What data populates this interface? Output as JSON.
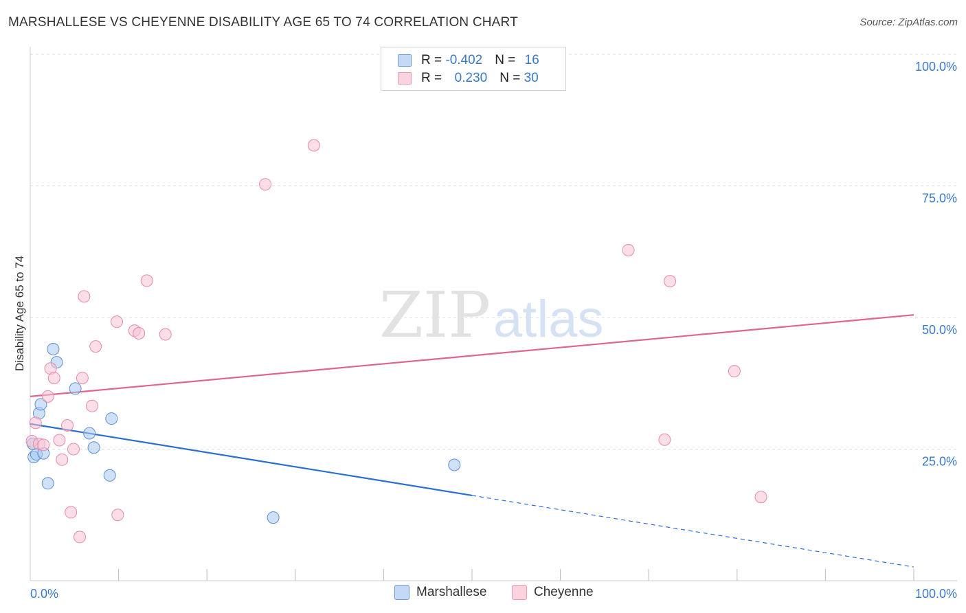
{
  "header": {
    "title": "MARSHALLESE VS CHEYENNE DISABILITY AGE 65 TO 74 CORRELATION CHART",
    "source": "Source: ZipAtlas.com"
  },
  "watermark": {
    "zip": "ZIP",
    "atlas": "atlas"
  },
  "legend": {
    "rows": [
      {
        "r_label": "R = ",
        "r_value": "-0.402",
        "n_label": "N = ",
        "n_value": "16",
        "color": "#a8c8f0",
        "border": "#5d8fd6"
      },
      {
        "r_label": "R = ",
        "r_value": " 0.230",
        "n_label": "N = ",
        "n_value": "30",
        "color": "#f8c3d3",
        "border": "#e88aa6"
      }
    ]
  },
  "bottom_legend": [
    "Marshallese",
    "Cheyenne"
  ],
  "chart_data": {
    "type": "scatter",
    "title": "MARSHALLESE VS CHEYENNE DISABILITY AGE 65 TO 74 CORRELATION CHART",
    "xlabel": "",
    "ylabel": "Disability Age 65 to 74",
    "xlim": [
      0,
      100
    ],
    "ylim": [
      0,
      100
    ],
    "x_tick_labels": [
      "0.0%",
      "100.0%"
    ],
    "y_tick_labels": [
      {
        "value": 100,
        "label": "100.0%"
      },
      {
        "value": 75,
        "label": "75.0%"
      },
      {
        "value": 50,
        "label": "50.0%"
      },
      {
        "value": 25,
        "label": "25.0%"
      }
    ],
    "series": [
      {
        "name": "Marshallese",
        "color": "#a8c8f0",
        "stroke": "#5d8fd6",
        "points": [
          [
            0.3,
            26.0
          ],
          [
            0.4,
            23.5
          ],
          [
            0.7,
            24.0
          ],
          [
            1.0,
            31.8
          ],
          [
            1.2,
            33.5
          ],
          [
            1.5,
            24.2
          ],
          [
            2.0,
            18.5
          ],
          [
            2.6,
            44.0
          ],
          [
            3.0,
            41.5
          ],
          [
            5.1,
            36.5
          ],
          [
            6.7,
            28.0
          ],
          [
            7.2,
            25.3
          ],
          [
            9.0,
            20.0
          ],
          [
            9.2,
            30.8
          ],
          [
            27.5,
            12.0
          ],
          [
            48.0,
            22.0
          ]
        ],
        "trend": {
          "x0": 0,
          "y0": 29.8,
          "x1": 50,
          "y1": 16.2,
          "dash_to_x": 100,
          "dash_to_y": 2.6,
          "color": "#2a6fd0"
        }
      },
      {
        "name": "Cheyenne",
        "color": "#f8c3d3",
        "stroke": "#e88aa6",
        "points": [
          [
            0.2,
            26.5
          ],
          [
            0.6,
            30.0
          ],
          [
            1.0,
            26.0
          ],
          [
            1.5,
            25.8
          ],
          [
            2.0,
            35.0
          ],
          [
            2.3,
            40.3
          ],
          [
            2.7,
            38.5
          ],
          [
            3.3,
            26.7
          ],
          [
            3.6,
            23.0
          ],
          [
            4.2,
            29.5
          ],
          [
            4.6,
            13.0
          ],
          [
            4.9,
            25.0
          ],
          [
            5.6,
            8.3
          ],
          [
            5.9,
            38.5
          ],
          [
            6.1,
            54.0
          ],
          [
            7.0,
            33.2
          ],
          [
            7.4,
            44.5
          ],
          [
            9.8,
            49.2
          ],
          [
            9.9,
            12.5
          ],
          [
            11.8,
            47.5
          ],
          [
            12.3,
            47.0
          ],
          [
            13.2,
            57.0
          ],
          [
            15.3,
            46.8
          ],
          [
            26.6,
            75.3
          ],
          [
            32.1,
            82.7
          ],
          [
            67.7,
            62.8
          ],
          [
            72.4,
            56.9
          ],
          [
            71.8,
            26.8
          ],
          [
            79.7,
            39.8
          ],
          [
            82.7,
            15.9
          ]
        ],
        "trend": {
          "x0": 0,
          "y0": 35.0,
          "x1": 100,
          "y1": 50.5,
          "color": "#e0658e"
        }
      }
    ]
  }
}
